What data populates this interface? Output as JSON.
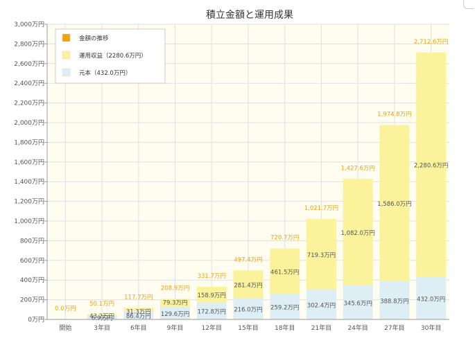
{
  "chart_data": {
    "type": "bar",
    "title": "積立金額と運用成果",
    "xlabel": "",
    "ylabel": "",
    "categories": [
      "開始",
      "3年目",
      "6年目",
      "9年目",
      "12年目",
      "15年目",
      "18年目",
      "21年目",
      "24年目",
      "27年目",
      "30年目"
    ],
    "series": [
      {
        "name": "元本（432.0万円）",
        "values": [
          0,
          43.2,
          86.4,
          129.6,
          172.8,
          216.0,
          259.2,
          302.4,
          345.6,
          388.8,
          432.0
        ],
        "labels": [
          "",
          "43.2万円",
          "86.4万円",
          "129.6万円",
          "172.8万円",
          "216.0万円",
          "259.2万円",
          "302.4万円",
          "345.6万円",
          "388.8万円",
          "432.0万円"
        ],
        "color": "#deeef5"
      },
      {
        "name": "運用収益（2280.6万円）",
        "values": [
          0,
          6.9,
          31.3,
          79.3,
          158.9,
          281.4,
          461.5,
          719.3,
          1082.0,
          1586.0,
          2280.6
        ],
        "labels": [
          "",
          "6.9万円",
          "31.3万円",
          "79.3万円",
          "158.9万円",
          "281.4万円",
          "461.5万円",
          "719.3万円",
          "1,082.0万円",
          "1,586.0万円",
          "2,280.6万円"
        ],
        "color": "#fbf29c"
      }
    ],
    "totals": {
      "name": "金額の推移",
      "values": [
        0.0,
        50.1,
        117.7,
        208.9,
        331.7,
        497.4,
        720.7,
        1021.7,
        1427.6,
        1974.8,
        2712.6
      ],
      "labels": [
        "0.0万円",
        "50.1万円",
        "117.7万円",
        "208.9万円",
        "331.7万円",
        "497.4万円",
        "720.7万円",
        "1,021.7万円",
        "1,427.6万円",
        "1,974.8万円",
        "2,712.6万円"
      ],
      "color": "#f0a30a"
    },
    "y_ticks": [
      0,
      200,
      400,
      600,
      800,
      1000,
      1200,
      1400,
      1600,
      1800,
      2000,
      2200,
      2400,
      2600,
      2800,
      3000
    ],
    "y_tick_labels": [
      "0万円",
      "200万円",
      "400万円",
      "600万円",
      "800万円",
      "1,000万円",
      "1,200万円",
      "1,400万円",
      "1,600万円",
      "1,800万円",
      "2,000万円",
      "2,200万円",
      "2,400万円",
      "2,600万円",
      "2,800万円",
      "3,000万円"
    ],
    "ylim": [
      0,
      3000
    ],
    "grid": true,
    "legend_position": "top-left",
    "plot_background": "#fffcf0"
  }
}
